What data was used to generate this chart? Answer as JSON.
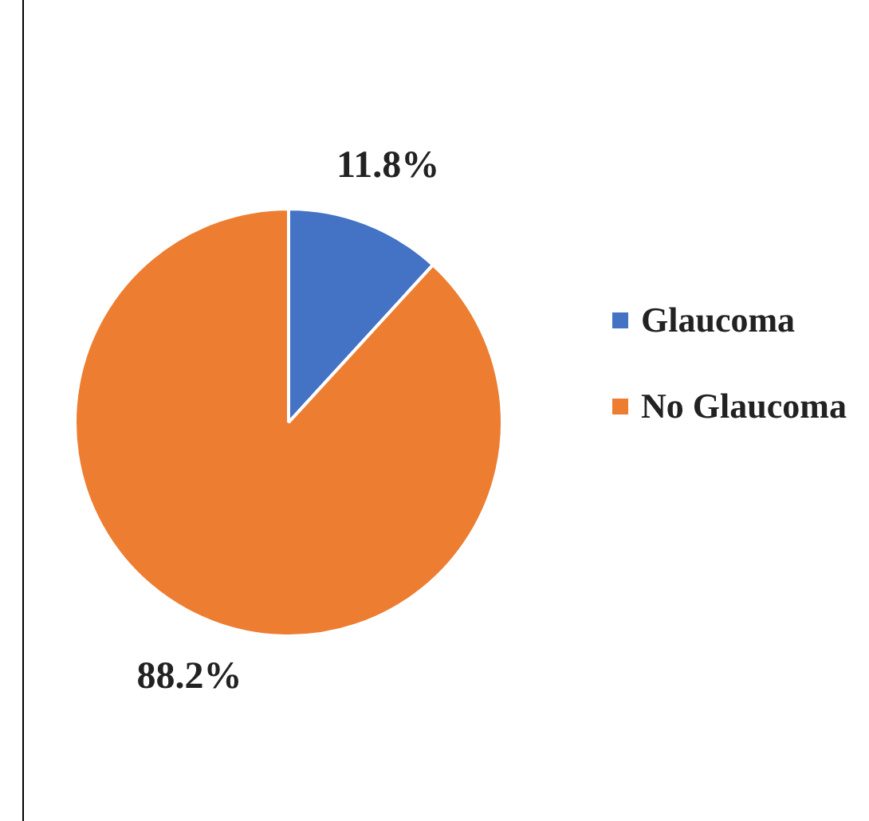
{
  "chart_data": {
    "type": "pie",
    "categories": [
      "Glaucoma",
      "No Glaucoma"
    ],
    "values": [
      11.8,
      88.2
    ],
    "colors": [
      "#4472c4",
      "#ed7d31"
    ],
    "value_labels": [
      "11.8%",
      "88.2%"
    ],
    "legend": "right"
  }
}
